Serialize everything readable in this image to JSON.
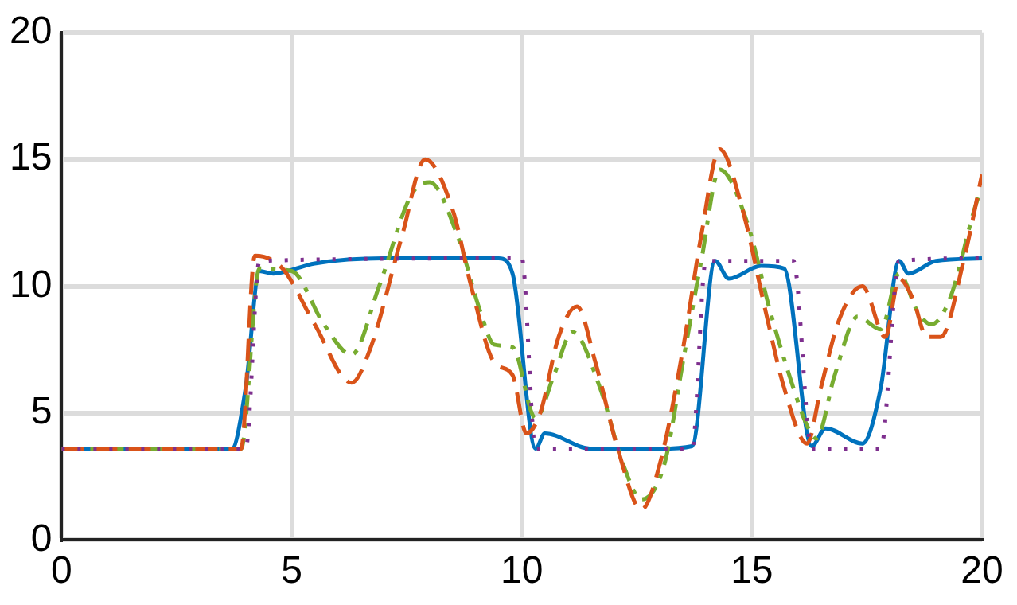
{
  "chart_data": {
    "type": "line",
    "xlim": [
      0,
      20
    ],
    "ylim": [
      0,
      20
    ],
    "xticks": [
      0,
      5,
      10,
      15,
      20
    ],
    "yticks": [
      0,
      5,
      10,
      15,
      20
    ],
    "grid": true,
    "legend": false,
    "marker": "none",
    "series": [
      {
        "color": "#7e2f8e",
        "line_style": "dotted",
        "x": [
          0,
          4.0,
          4.3,
          10.0,
          10.3,
          13.7,
          14.0,
          15.9,
          16.3,
          17.8,
          18.2,
          20
        ],
        "values": [
          3.6,
          3.6,
          11.0,
          11.1,
          3.6,
          3.6,
          11.0,
          11.0,
          3.6,
          3.6,
          11.0,
          11.1
        ]
      },
      {
        "color": "#d95319",
        "line_style": "dashed",
        "x": [
          0,
          3.9,
          4.2,
          4.8,
          5.5,
          6.3,
          6.7,
          7.4,
          7.9,
          8.5,
          8.9,
          9.4,
          9.8,
          10.1,
          10.4,
          10.8,
          11.2,
          11.6,
          12.1,
          12.6,
          13.0,
          13.5,
          13.9,
          14.3,
          14.8,
          15.3,
          15.7,
          16.2,
          16.5,
          16.9,
          17.4,
          17.9,
          18.2,
          18.5,
          18.8,
          19.1,
          19.6,
          20
        ],
        "values": [
          3.6,
          3.6,
          11.2,
          10.7,
          8.5,
          6.2,
          7.5,
          12.0,
          15.0,
          13.0,
          10.0,
          7.0,
          6.5,
          4.2,
          5.0,
          8.0,
          9.2,
          7.0,
          3.5,
          1.2,
          3.0,
          7.5,
          12.0,
          15.4,
          13.0,
          9.0,
          6.0,
          3.8,
          6.0,
          8.7,
          10.0,
          8.0,
          10.3,
          9.5,
          8.0,
          8.0,
          11.0,
          14.4
        ]
      },
      {
        "color": "#77ac30",
        "line_style": "dashdot",
        "x": [
          0,
          3.9,
          4.3,
          5.0,
          5.7,
          6.3,
          6.9,
          7.6,
          8.0,
          8.6,
          9.1,
          9.4,
          9.8,
          10.3,
          10.7,
          11.1,
          11.7,
          12.2,
          12.6,
          13.1,
          13.5,
          13.9,
          14.3,
          14.9,
          15.4,
          15.9,
          16.2,
          16.4,
          16.8,
          17.3,
          17.8,
          18.2,
          18.6,
          18.9,
          19.3,
          19.9,
          20
        ],
        "values": [
          3.6,
          3.6,
          10.7,
          10.6,
          8.5,
          7.3,
          10.0,
          13.6,
          14.1,
          12.0,
          9.0,
          7.7,
          7.6,
          4.8,
          6.5,
          8.2,
          6.0,
          3.0,
          1.6,
          3.0,
          7.0,
          11.0,
          14.6,
          12.5,
          9.0,
          6.0,
          4.5,
          4.0,
          6.5,
          8.8,
          8.3,
          10.5,
          9.0,
          8.5,
          9.5,
          13.4,
          13.8
        ]
      },
      {
        "color": "#0072bd",
        "line_style": "solid",
        "x": [
          0,
          3.7,
          4.0,
          4.3,
          4.6,
          5.5,
          7.0,
          9.5,
          9.8,
          10.3,
          10.5,
          11.5,
          13.0,
          13.7,
          14.2,
          14.5,
          15.2,
          15.7,
          16.3,
          16.6,
          17.4,
          17.8,
          18.2,
          18.4,
          19.0,
          20
        ],
        "values": [
          3.6,
          3.6,
          6.0,
          10.6,
          10.5,
          10.9,
          11.1,
          11.1,
          10.5,
          3.6,
          4.2,
          3.6,
          3.6,
          3.7,
          11.0,
          10.3,
          10.8,
          10.7,
          3.7,
          4.4,
          3.8,
          6.0,
          11.0,
          10.5,
          11.0,
          11.1
        ]
      }
    ]
  }
}
